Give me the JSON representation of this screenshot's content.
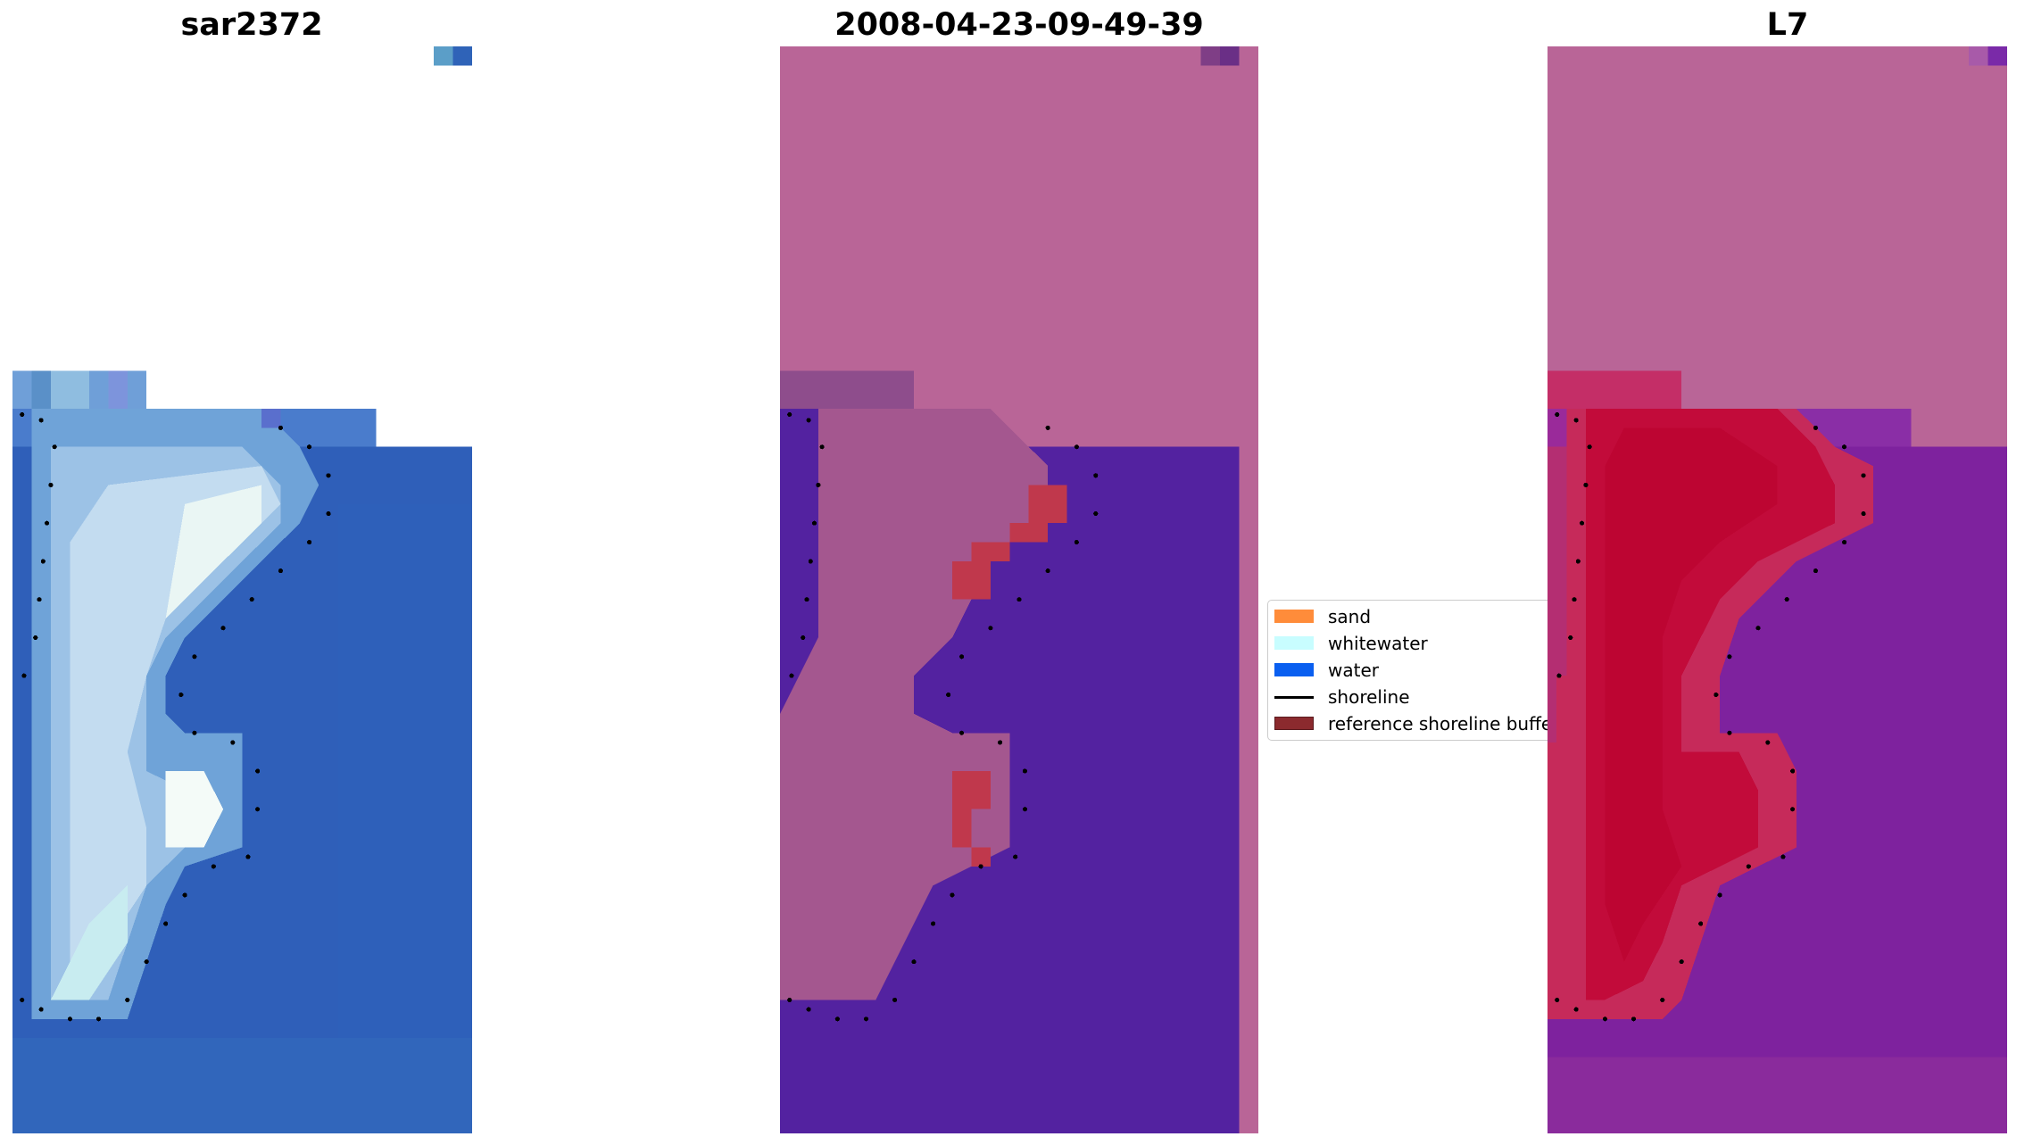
{
  "panels": [
    {
      "title": "sar2372"
    },
    {
      "title": "2008-04-23-09-49-39"
    },
    {
      "title": "L7"
    }
  ],
  "legend": {
    "items": [
      {
        "label": "sand",
        "color": "#ff8c3a",
        "kind": "patch"
      },
      {
        "label": "whitewater",
        "color": "#c8fdff",
        "kind": "patch"
      },
      {
        "label": "water",
        "color": "#0a5ff0",
        "kind": "patch"
      },
      {
        "label": "shoreline",
        "color": "#000000",
        "kind": "line"
      },
      {
        "label": "reference shoreline buffer",
        "color": "#8b2a2e",
        "kind": "patch"
      }
    ]
  }
}
